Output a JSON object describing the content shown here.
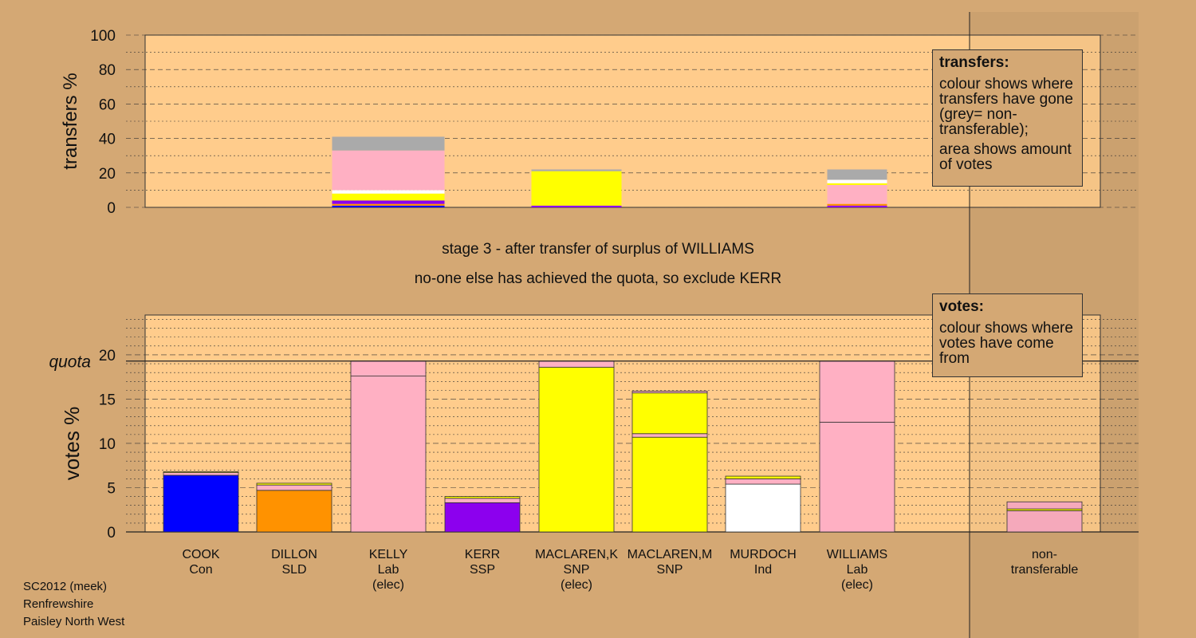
{
  "stage_text": {
    "line1": "stage 3 - after transfer of surplus of WILLIAMS",
    "line2": "no-one else has achieved the quota, so exclude KERR"
  },
  "legend_transfers": {
    "title": "transfers:",
    "para1": "colour shows where transfers have gone (grey= non-transferable);",
    "para2": "area shows amount of votes"
  },
  "legend_votes": {
    "title": "votes:",
    "para1": "colour shows where votes have come from"
  },
  "footer": {
    "line1": "SC2012 (meek)",
    "line2": "Renfrewshire",
    "line3": "Paisley North West"
  },
  "colors": {
    "background": "#d4a874",
    "plot_bg": "#ffcc8c",
    "Con": "#0000ff",
    "SLD": "#ff9200",
    "Lab": "#ffb0c3",
    "SSP": "#8c00ee",
    "SNP": "#ffff00",
    "Ind": "#ffffff",
    "nontransferable": "#aaaaaa"
  },
  "chart_data": [
    {
      "type": "bar",
      "name": "transfers",
      "ylabel": "transfers %",
      "ylim": [
        0,
        100
      ],
      "yticks": [
        0,
        20,
        40,
        60,
        80,
        100
      ],
      "grid": true,
      "bars": [
        {
          "candidate": "KELLY",
          "segments": [
            {
              "color": "Con",
              "value": 1
            },
            {
              "color": "SLD",
              "value": 1
            },
            {
              "color": "SSP",
              "value": 2
            },
            {
              "color": "SNP",
              "value": 4
            },
            {
              "color": "Ind",
              "value": 2
            },
            {
              "color": "Lab",
              "value": 23
            },
            {
              "color": "nontransferable",
              "value": 8
            }
          ]
        },
        {
          "candidate": "MACLAREN,K",
          "segments": [
            {
              "color": "SSP",
              "value": 1
            },
            {
              "color": "SNP",
              "value": 20
            },
            {
              "color": "nontransferable",
              "value": 1
            }
          ]
        },
        {
          "candidate": "WILLIAMS",
          "segments": [
            {
              "color": "SSP",
              "value": 1
            },
            {
              "color": "SLD",
              "value": 1
            },
            {
              "color": "Lab",
              "value": 11
            },
            {
              "color": "SNP",
              "value": 1
            },
            {
              "color": "Ind",
              "value": 2
            },
            {
              "color": "nontransferable",
              "value": 6
            }
          ]
        }
      ]
    },
    {
      "type": "bar",
      "name": "votes",
      "ylabel": "votes %",
      "ylim": [
        0,
        24.5
      ],
      "yticks": [
        0,
        5,
        10,
        15,
        20
      ],
      "quota": 19.3,
      "quota_label": "quota",
      "grid": true,
      "bars": [
        {
          "name": "COOK",
          "party": "Con",
          "elected": "",
          "segments": [
            {
              "color": "Con",
              "value": 6.4
            },
            {
              "color": "Lab",
              "value": 0.3
            },
            {
              "color": "SNP",
              "value": 0.1
            }
          ]
        },
        {
          "name": "DILLON",
          "party": "SLD",
          "elected": "",
          "segments": [
            {
              "color": "SLD",
              "value": 4.7
            },
            {
              "color": "Lab",
              "value": 0.6
            },
            {
              "color": "SNP",
              "value": 0.2
            }
          ]
        },
        {
          "name": "KELLY",
          "party": "Lab",
          "elected": "(elec)",
          "segments": [
            {
              "color": "Lab",
              "value": 17.6
            },
            {
              "color": "Lab",
              "value": 1.7
            }
          ]
        },
        {
          "name": "KERR",
          "party": "SSP",
          "elected": "",
          "segments": [
            {
              "color": "SSP",
              "value": 3.3
            },
            {
              "color": "Lab",
              "value": 0.5
            },
            {
              "color": "SNP",
              "value": 0.2
            }
          ]
        },
        {
          "name": "MACLAREN,K",
          "party": "SNP",
          "elected": "(elec)",
          "segments": [
            {
              "color": "SNP",
              "value": 18.6
            },
            {
              "color": "Lab",
              "value": 0.7
            }
          ]
        },
        {
          "name": "MACLAREN,M",
          "party": "SNP",
          "elected": "",
          "segments": [
            {
              "color": "SNP",
              "value": 10.7
            },
            {
              "color": "Lab",
              "value": 0.4
            },
            {
              "color": "SNP",
              "value": 4.6
            },
            {
              "color": "Lab",
              "value": 0.2
            }
          ]
        },
        {
          "name": "MURDOCH",
          "party": "Ind",
          "elected": "",
          "segments": [
            {
              "color": "Ind",
              "value": 5.4
            },
            {
              "color": "Lab",
              "value": 0.6
            },
            {
              "color": "SNP",
              "value": 0.3
            }
          ]
        },
        {
          "name": "WILLIAMS",
          "party": "Lab",
          "elected": "(elec)",
          "segments": [
            {
              "color": "Lab",
              "value": 12.4
            },
            {
              "color": "Lab",
              "value": 6.9
            }
          ]
        },
        {
          "name": "non-",
          "party": "transferable",
          "elected": "",
          "segments": [
            {
              "color": "Lab",
              "value": 2.4
            },
            {
              "color": "SNP",
              "value": 0.2
            },
            {
              "color": "Lab",
              "value": 0.8
            }
          ]
        }
      ]
    }
  ]
}
